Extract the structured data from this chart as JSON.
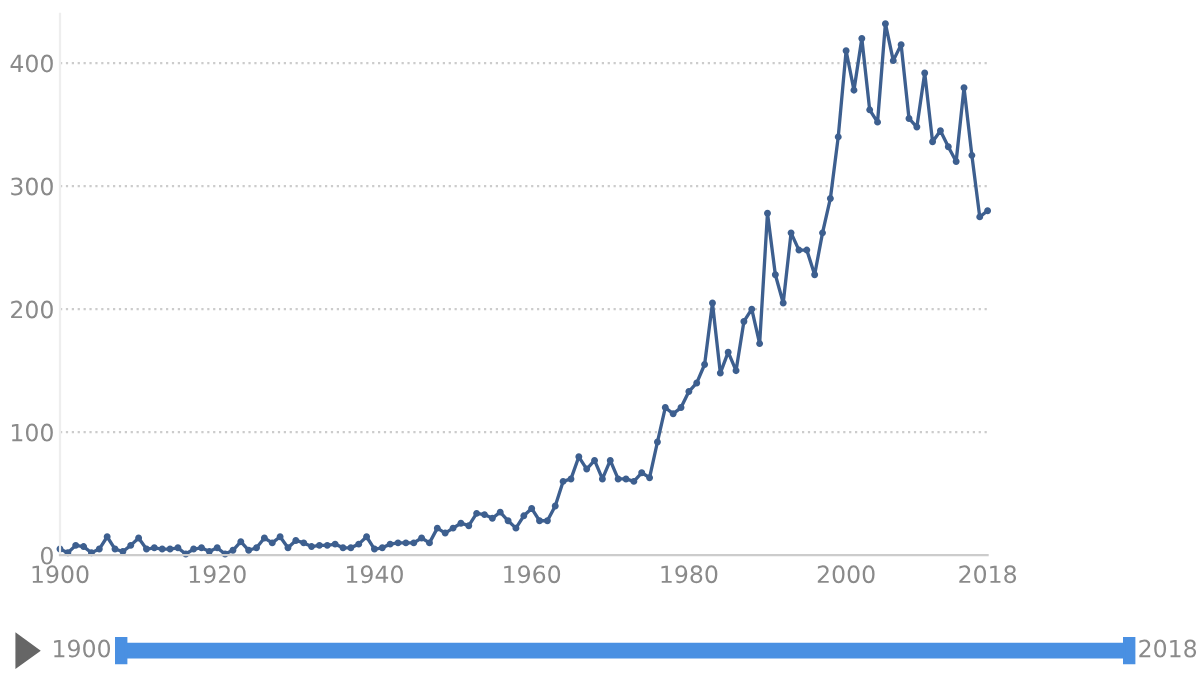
{
  "chart_data": {
    "type": "line",
    "x": [
      1900,
      1901,
      1902,
      1903,
      1904,
      1905,
      1906,
      1907,
      1908,
      1909,
      1910,
      1911,
      1912,
      1913,
      1914,
      1915,
      1916,
      1917,
      1918,
      1919,
      1920,
      1921,
      1922,
      1923,
      1924,
      1925,
      1926,
      1927,
      1928,
      1929,
      1930,
      1931,
      1932,
      1933,
      1934,
      1935,
      1936,
      1937,
      1938,
      1939,
      1940,
      1941,
      1942,
      1943,
      1944,
      1945,
      1946,
      1947,
      1948,
      1949,
      1950,
      1951,
      1952,
      1953,
      1954,
      1955,
      1956,
      1957,
      1958,
      1959,
      1960,
      1961,
      1962,
      1963,
      1964,
      1965,
      1966,
      1967,
      1968,
      1969,
      1970,
      1971,
      1972,
      1973,
      1974,
      1975,
      1976,
      1977,
      1978,
      1979,
      1980,
      1981,
      1982,
      1983,
      1984,
      1985,
      1986,
      1987,
      1988,
      1989,
      1990,
      1991,
      1992,
      1993,
      1994,
      1995,
      1996,
      1997,
      1998,
      1999,
      2000,
      2001,
      2002,
      2003,
      2004,
      2005,
      2006,
      2007,
      2008,
      2009,
      2010,
      2011,
      2012,
      2013,
      2014,
      2015,
      2016,
      2017,
      2018
    ],
    "series": [
      {
        "color": "#3d5f8f",
        "values": [
          5,
          2,
          8,
          7,
          2,
          5,
          15,
          5,
          3,
          8,
          14,
          5,
          6,
          5,
          5,
          6,
          1,
          5,
          6,
          3,
          6,
          1,
          4,
          11,
          4,
          6,
          14,
          10,
          15,
          6,
          12,
          10,
          7,
          8,
          8,
          9,
          6,
          6,
          9,
          15,
          5,
          6,
          9,
          10,
          10,
          10,
          14,
          10,
          22,
          18,
          22,
          26,
          24,
          34,
          33,
          30,
          35,
          28,
          22,
          32,
          38,
          28,
          28,
          40,
          60,
          62,
          80,
          70,
          77,
          62,
          77,
          62,
          62,
          60,
          67,
          63,
          92,
          120,
          115,
          120,
          133,
          140,
          155,
          205,
          148,
          165,
          150,
          190,
          200,
          172,
          278,
          228,
          205,
          262,
          248,
          248,
          228,
          262,
          290,
          340,
          410,
          378,
          420,
          362,
          352,
          432,
          402,
          415,
          355,
          348,
          392,
          336,
          345,
          332,
          320,
          380,
          325,
          275,
          280
        ]
      }
    ],
    "xlim": [
      1900,
      2018
    ],
    "xticks": [
      1900,
      1920,
      1940,
      1960,
      1980,
      2000,
      2018
    ],
    "ylim": [
      0,
      440
    ],
    "yticks": [
      0,
      100,
      200,
      300,
      400
    ],
    "grid": "y",
    "marker": "circle",
    "line_style": "solid",
    "legend": false,
    "annotations": [
      "1900",
      "2018"
    ]
  }
}
